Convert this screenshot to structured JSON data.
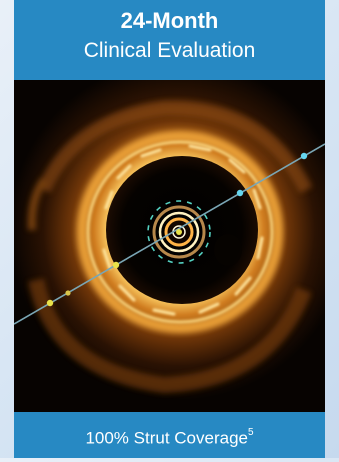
{
  "header": {
    "title": "24-Month",
    "subtitle": "Clinical Evaluation"
  },
  "footer": {
    "caption": "100% Strut Coverage",
    "reference": "5"
  },
  "image": {
    "subject": "oct-cross-section",
    "colors": {
      "brand_blue": "#2789c3",
      "tissue_orange": "#e39a2a",
      "guidewire_line": "#7aa6b4",
      "marker_yellow": "#e9e24a",
      "marker_cyan": "#66d6ef"
    }
  }
}
